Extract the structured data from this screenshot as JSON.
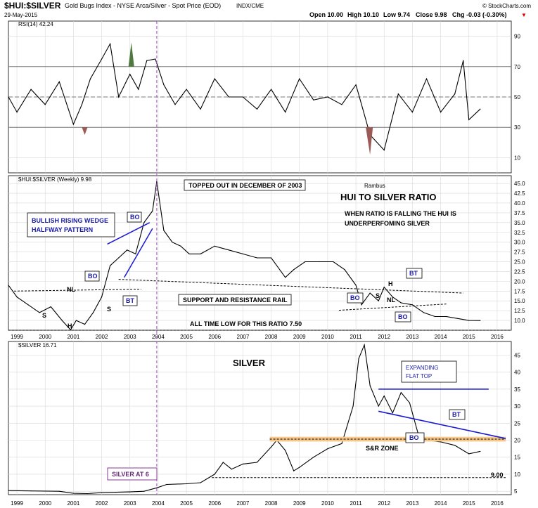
{
  "header": {
    "symbol": "$HUI:$SILVER",
    "description": "Gold Bugs Index - NYSE Arca/Silver - Spot Price (EOD)",
    "exchange": "INDX/CME",
    "date": "29-May-2015",
    "open": "Open 10.00",
    "high": "High 10.10",
    "low": "Low 9.74",
    "close": "Close 9.98",
    "chg": "Chg -0.03 (-0.30%)",
    "chg_arrow": "▼",
    "brand": "© StockCharts.com"
  },
  "colors": {
    "price_line": "#000000",
    "grid": "#d8d8d8",
    "rsi_overbought": "#4f7a3f",
    "rsi_oversold": "#9b5a55",
    "annotation_blue": "#1a1aa6",
    "trendline_blue": "#1a1ad0",
    "sr_zone": "#f6c98a",
    "marker": "#b06ac8",
    "silver_label_border": "#8a3a9a"
  },
  "chart_data": [
    {
      "type": "line",
      "name": "rsi",
      "legend": "RSI(14) 42.24",
      "yticks": [
        10,
        30,
        50,
        70,
        90
      ],
      "ylim": [
        0,
        100
      ],
      "reference_lines": [
        30,
        50,
        70
      ],
      "x": [
        1998.7,
        1999.0,
        1999.5,
        2000.0,
        2000.5,
        2001.0,
        2001.3,
        2001.6,
        2002.0,
        2002.3,
        2002.6,
        2003.0,
        2003.3,
        2003.6,
        2003.9,
        2004.2,
        2004.6,
        2005.0,
        2005.5,
        2006.0,
        2006.5,
        2007.0,
        2007.5,
        2008.0,
        2008.5,
        2009.0,
        2009.5,
        2010.0,
        2010.5,
        2011.0,
        2011.2,
        2011.5,
        2012.0,
        2012.5,
        2013.0,
        2013.5,
        2014.0,
        2014.5,
        2014.8,
        2015.0,
        2015.4
      ],
      "values": [
        50,
        40,
        55,
        45,
        60,
        32,
        45,
        62,
        75,
        85,
        50,
        65,
        55,
        74,
        75,
        58,
        45,
        55,
        42,
        62,
        50,
        50,
        42,
        55,
        40,
        62,
        48,
        50,
        45,
        58,
        45,
        25,
        15,
        52,
        40,
        62,
        40,
        52,
        74,
        35,
        42
      ]
    },
    {
      "type": "line",
      "name": "hui_silver_ratio",
      "legend": "$HUI:$SILVER (Weekly) 9.98",
      "ylim": [
        7.5,
        47.0
      ],
      "yticks": [
        10.0,
        12.5,
        15.0,
        17.5,
        20.0,
        22.5,
        25.0,
        27.5,
        30.0,
        32.5,
        35.0,
        37.5,
        40.0,
        42.5,
        45.0
      ],
      "x": [
        1998.7,
        1999.0,
        1999.4,
        1999.8,
        2000.2,
        2000.6,
        2000.9,
        2001.1,
        2001.4,
        2001.7,
        2002.0,
        2002.3,
        2002.6,
        2002.9,
        2003.2,
        2003.5,
        2003.8,
        2003.95,
        2004.2,
        2004.5,
        2004.8,
        2005.1,
        2005.5,
        2006.0,
        2006.5,
        2007.0,
        2007.5,
        2008.0,
        2008.5,
        2008.8,
        2009.2,
        2009.7,
        2010.2,
        2010.6,
        2011.0,
        2011.2,
        2011.5,
        2011.8,
        2012.0,
        2012.3,
        2012.6,
        2013.0,
        2013.4,
        2013.8,
        2014.2,
        2014.6,
        2015.0,
        2015.4
      ],
      "values": [
        19,
        16,
        14,
        12,
        13.5,
        10,
        7.6,
        10,
        9,
        12,
        16,
        24,
        26,
        28,
        27,
        35,
        38,
        45.5,
        33,
        30,
        29,
        27,
        27,
        29,
        28,
        27,
        26,
        26,
        21,
        23,
        25,
        25,
        25,
        23,
        19,
        14,
        17,
        15,
        18.5,
        16,
        14.5,
        14,
        12,
        11,
        11,
        10.5,
        10,
        9.98
      ],
      "annotations": {
        "topped": "TOPPED OUT IN DECEMBER OF 2003",
        "author": "Rambus",
        "title": "HUI TO SILVER RATIO",
        "note1": "WHEN RATIO IS FALLING THE HUI IS",
        "note2": "UNDERPERFOMING SILVER",
        "wedge1": "BULLISH RISING WEDGE",
        "wedge2": "HALFWAY PATTERN",
        "sr_rail": "SUPPORT AND RESISTANCE RAIL",
        "all_time_low": "ALL TIME  LOW FOR THIS RATIO   7.50",
        "bo": "BO",
        "bt": "BT",
        "nl": "NL",
        "s": "S",
        "h": "H"
      }
    },
    {
      "type": "line",
      "name": "silver",
      "legend": "$SILVER 16.71",
      "title": "SILVER",
      "ylim": [
        4,
        49
      ],
      "yticks": [
        5,
        10,
        15,
        20,
        25,
        30,
        35,
        40,
        45
      ],
      "xticks": [
        1999,
        2000,
        2001,
        2002,
        2003,
        2004,
        2005,
        2006,
        2007,
        2008,
        2009,
        2010,
        2011,
        2012,
        2013,
        2014,
        2015,
        2016
      ],
      "x": [
        1998.7,
        1999.5,
        2000.5,
        2001.0,
        2001.5,
        2002.0,
        2002.5,
        2003.0,
        2003.5,
        2003.95,
        2004.3,
        2005.0,
        2005.5,
        2006.0,
        2006.3,
        2006.6,
        2007.0,
        2007.5,
        2008.0,
        2008.2,
        2008.5,
        2008.8,
        2009.0,
        2009.5,
        2010.0,
        2010.5,
        2010.9,
        2011.1,
        2011.3,
        2011.5,
        2011.8,
        2012.0,
        2012.3,
        2012.6,
        2012.9,
        2013.2,
        2013.5,
        2014.0,
        2014.5,
        2015.0,
        2015.4
      ],
      "values": [
        5.2,
        5.1,
        5.0,
        4.4,
        4.3,
        4.6,
        4.7,
        4.8,
        5.0,
        6.0,
        7.0,
        7.2,
        7.5,
        10.0,
        13.5,
        11.5,
        13,
        13.5,
        18,
        20,
        17,
        11,
        12,
        15,
        17.5,
        19,
        30,
        44,
        48,
        36,
        30,
        33,
        28,
        34,
        31,
        22,
        20,
        19.5,
        18.5,
        16,
        16.71
      ],
      "annotations": {
        "expanding1": "EXPANDING",
        "expanding2": "FLAT TOP",
        "bt": "BT",
        "bo": "BO",
        "sr_zone": "S&R ZONE",
        "level": "9.00",
        "silver_at": "SILVER AT 6"
      }
    }
  ]
}
